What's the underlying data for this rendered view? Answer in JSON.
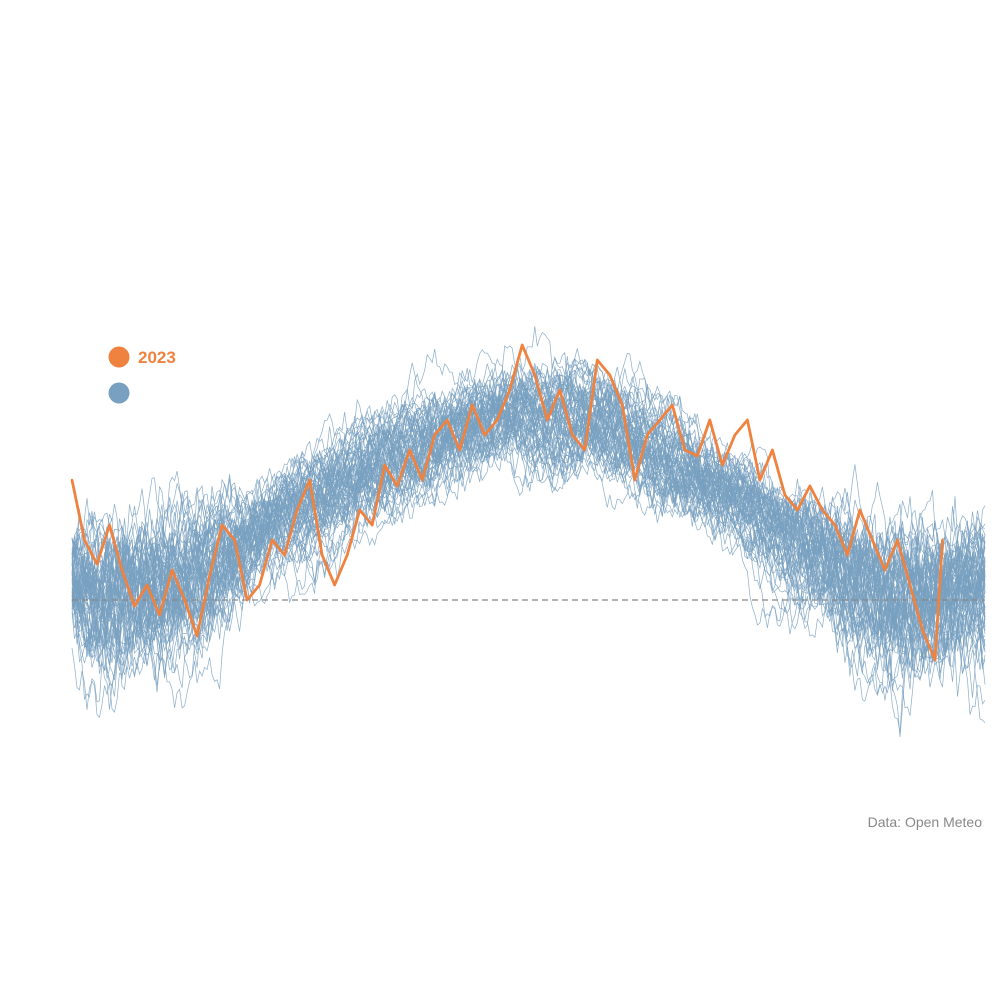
{
  "chart_data": {
    "type": "line",
    "title": "",
    "xlabel": "",
    "ylabel": "",
    "legend": {
      "position": "top-left",
      "entries": [
        {
          "label": "2023",
          "color": "#f0823f"
        },
        {
          "label": "",
          "color": "#78a0c0"
        }
      ]
    },
    "caption": "Data: Open Meteo",
    "x_domain": [
      1,
      366
    ],
    "y_range": [
      -60,
      100
    ],
    "reference_line": {
      "y": 0,
      "style": "dashed",
      "color": "#888888"
    },
    "colors": {
      "highlight": "#f0823f",
      "history": "#78a0c0"
    },
    "history_count": 70,
    "history_baseline": [
      [
        1,
        8
      ],
      [
        15,
        3
      ],
      [
        30,
        4
      ],
      [
        45,
        8
      ],
      [
        60,
        14
      ],
      [
        75,
        22
      ],
      [
        90,
        30
      ],
      [
        105,
        38
      ],
      [
        120,
        45
      ],
      [
        135,
        51
      ],
      [
        150,
        56
      ],
      [
        165,
        60
      ],
      [
        180,
        62
      ],
      [
        195,
        63
      ],
      [
        210,
        61
      ],
      [
        225,
        56
      ],
      [
        240,
        48
      ],
      [
        255,
        40
      ],
      [
        270,
        32
      ],
      [
        285,
        24
      ],
      [
        300,
        16
      ],
      [
        315,
        8
      ],
      [
        330,
        3
      ],
      [
        345,
        2
      ],
      [
        366,
        4
      ]
    ],
    "series": [
      {
        "name": "2023",
        "role": "highlight",
        "x": [
          1,
          6,
          11,
          16,
          21,
          26,
          31,
          36,
          41,
          46,
          51,
          56,
          61,
          66,
          71,
          76,
          81,
          86,
          91,
          96,
          101,
          106,
          111,
          116,
          121,
          126,
          131,
          136,
          141,
          146,
          151,
          156,
          161,
          166,
          171,
          176,
          181,
          186,
          191,
          196,
          201,
          206,
          211,
          216,
          221,
          226,
          231,
          236,
          241,
          246,
          251,
          256,
          261,
          266,
          271,
          276,
          281,
          286,
          291,
          296,
          301,
          306,
          311,
          316,
          321,
          326,
          331,
          336,
          341,
          346,
          349
        ],
        "values": [
          40,
          20,
          12,
          25,
          10,
          -2,
          5,
          -5,
          10,
          0,
          -12,
          8,
          25,
          20,
          0,
          5,
          20,
          15,
          30,
          40,
          15,
          5,
          15,
          30,
          25,
          45,
          38,
          50,
          40,
          55,
          60,
          50,
          65,
          55,
          60,
          70,
          85,
          75,
          60,
          70,
          55,
          50,
          80,
          75,
          65,
          40,
          55,
          60,
          65,
          50,
          48,
          60,
          45,
          55,
          60,
          40,
          50,
          35,
          30,
          38,
          30,
          25,
          15,
          30,
          20,
          10,
          20,
          5,
          -10,
          -20,
          20
        ]
      }
    ]
  }
}
